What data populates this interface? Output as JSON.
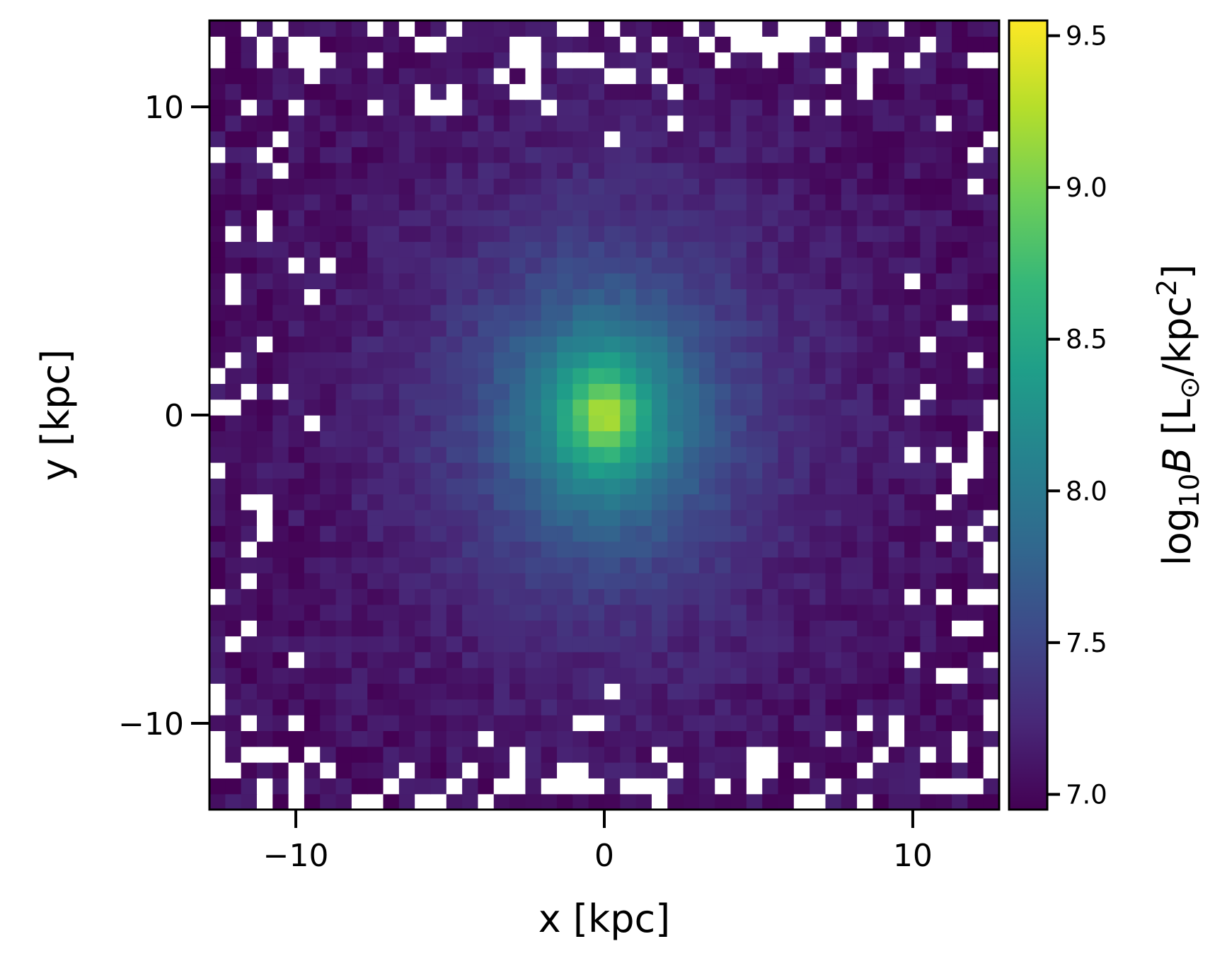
{
  "chart_data": {
    "type": "heatmap",
    "title": "",
    "xlabel": "x [kpc]",
    "ylabel": "y [kpc]",
    "xlim": [
      -12.8,
      12.8
    ],
    "ylim": [
      -12.8,
      12.8
    ],
    "xticks": [
      -10,
      0,
      10
    ],
    "yticks": [
      -10,
      0,
      10
    ],
    "xtick_labels": [
      "−10",
      "0",
      "10"
    ],
    "ytick_labels": [
      "−10",
      "0",
      "10"
    ],
    "bins": [
      50,
      50
    ],
    "grid": false,
    "colormap": "viridis",
    "colorbar": {
      "label_prefix": "log",
      "label_sub": "10",
      "label_var": "B",
      "label_units_open": " [L",
      "label_units_sun": "⊙",
      "label_units_mid": "/kpc",
      "label_units_sup": "2",
      "label_units_close": "]",
      "range": [
        6.95,
        9.55
      ],
      "ticks": [
        7.0,
        7.5,
        8.0,
        8.5,
        9.0,
        9.5
      ],
      "tick_labels": [
        "7.0",
        "7.5",
        "8.0",
        "8.5",
        "9.0",
        "9.5"
      ]
    },
    "field_model": {
      "description_of_values": "log10 surface brightness peaks at 9.5 near (0,0) and falls to about 7.0 at the edges; outer bins are often empty",
      "peak_value": 9.5,
      "peak_center": [
        0.0,
        0.0
      ],
      "edge_value": 7.0,
      "empty_fraction_at_edges": 0.28
    }
  },
  "colors": {
    "viridis": [
      "#440154",
      "#482878",
      "#3e4989",
      "#31688e",
      "#26828e",
      "#1f9e89",
      "#35b779",
      "#6ece58",
      "#b5de2b",
      "#fde725"
    ],
    "empty_bin": "#ffffff",
    "axes": "#000000"
  }
}
